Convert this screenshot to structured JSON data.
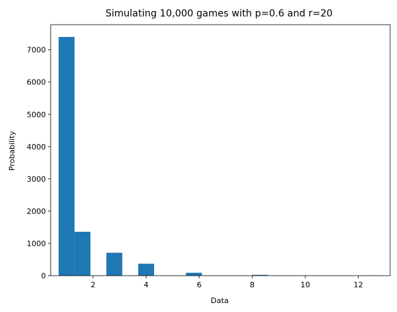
{
  "chart_data": {
    "type": "bar",
    "title": "Simulating 10,000 games with p=0.6 and r=20",
    "xlabel": "Data",
    "ylabel": "Probability",
    "xlim": [
      0.4,
      13.2
    ],
    "ylim": [
      0,
      7780
    ],
    "xticks": [
      2,
      4,
      6,
      8,
      10,
      12
    ],
    "yticks": [
      0,
      1000,
      2000,
      3000,
      4000,
      5000,
      6000,
      7000
    ],
    "bin_width": 0.6,
    "bins": [
      {
        "x0": 0.7,
        "x1": 1.3,
        "value": 7400
      },
      {
        "x0": 1.3,
        "x1": 1.9,
        "value": 1360
      },
      {
        "x0": 2.5,
        "x1": 3.1,
        "value": 710
      },
      {
        "x0": 3.7,
        "x1": 4.3,
        "value": 370
      },
      {
        "x0": 5.5,
        "x1": 6.1,
        "value": 90
      },
      {
        "x0": 8.0,
        "x1": 8.6,
        "value": 25
      },
      {
        "x0": 12.2,
        "x1": 12.8,
        "value": 10
      }
    ],
    "grid": false,
    "legend": "none",
    "bar_color": "#1f77b4"
  }
}
